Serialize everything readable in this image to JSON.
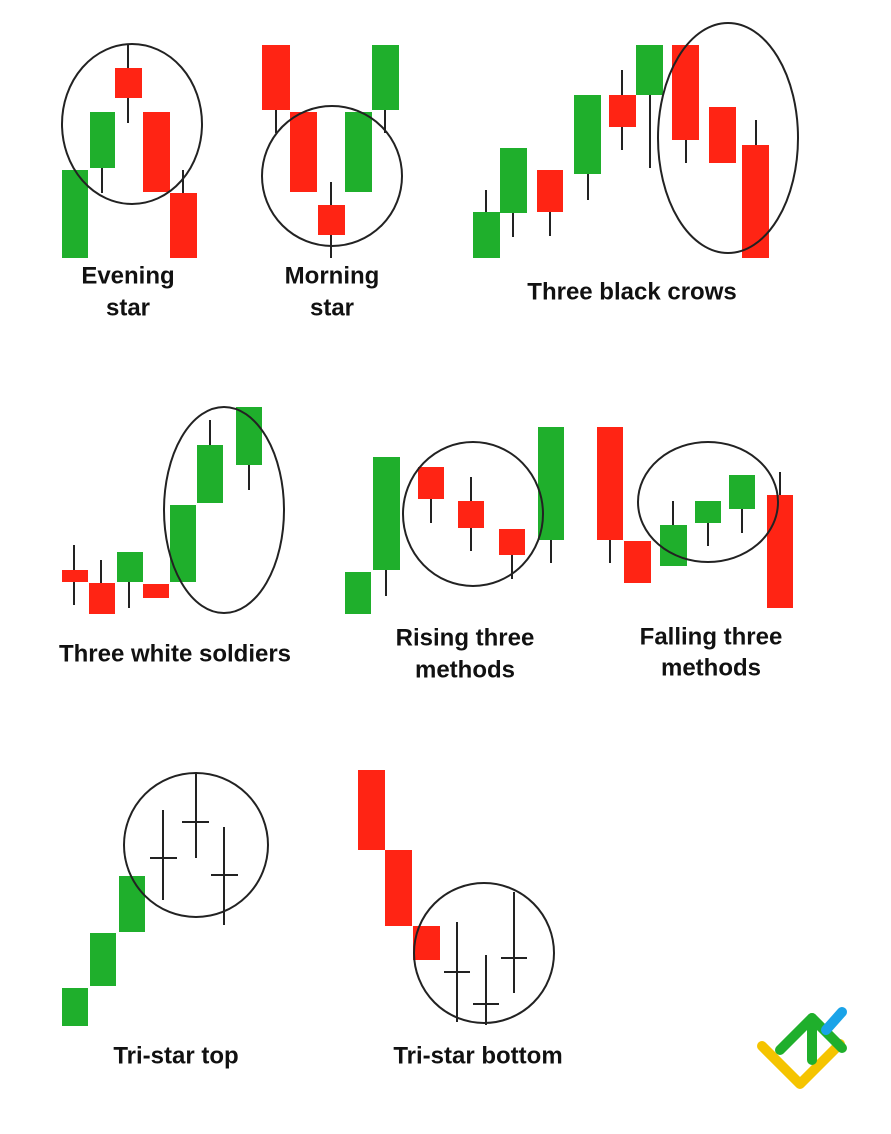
{
  "patterns": [
    {
      "label": [
        "Evening",
        "star"
      ]
    },
    {
      "label": [
        "Morning",
        "star"
      ]
    },
    {
      "label": [
        "Three black crows"
      ]
    },
    {
      "label": [
        "Three white soldiers"
      ]
    },
    {
      "label": [
        "Rising three",
        "methods"
      ]
    },
    {
      "label": [
        "Falling three",
        "methods"
      ]
    },
    {
      "label": [
        "Tri-star top"
      ]
    },
    {
      "label": [
        "Tri-star bottom"
      ]
    }
  ]
}
